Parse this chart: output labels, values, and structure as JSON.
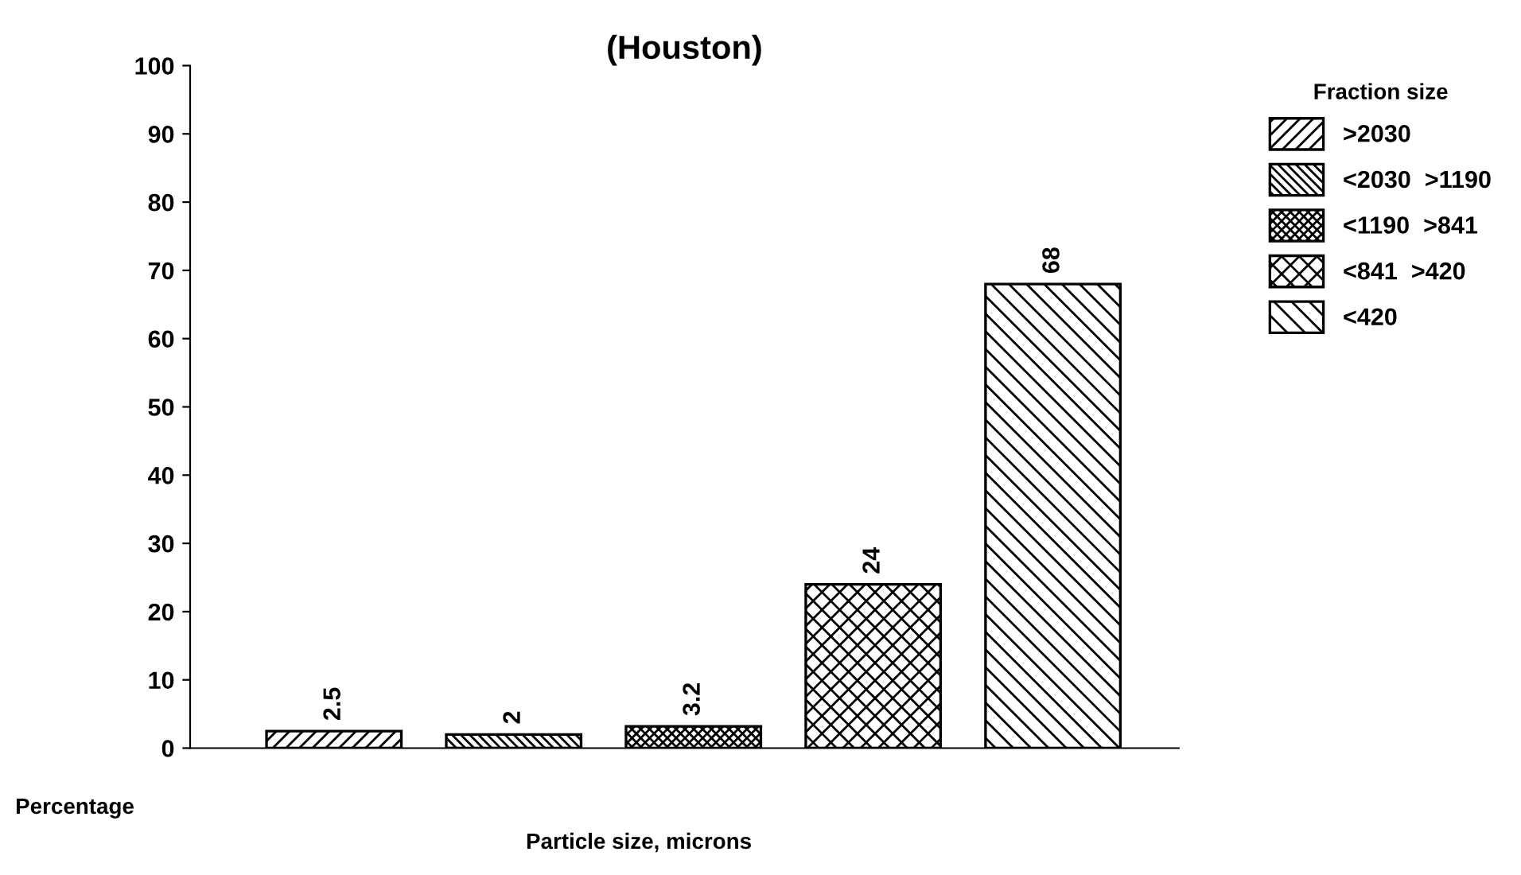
{
  "chart_data": {
    "type": "bar",
    "title": "(Houston)",
    "xlabel": "Particle size, microns",
    "ylabel": "Percentage",
    "legend_title": "Fraction size",
    "categories": [
      null,
      null,
      null,
      null,
      null
    ],
    "series": [
      {
        "name": ">2030",
        "color": "#000000",
        "values": [
          2.5,
          null,
          null,
          null,
          null
        ]
      },
      {
        "name": "<2030  >1190",
        "color": "#000000",
        "values": [
          null,
          2,
          null,
          null,
          null
        ]
      },
      {
        "name": "<1190  >841",
        "color": "#000000",
        "values": [
          null,
          null,
          3.2,
          null,
          null
        ]
      },
      {
        "name": "<841  >420",
        "color": "#000000",
        "values": [
          null,
          null,
          null,
          24,
          null
        ]
      },
      {
        "name": "<420",
        "color": "#000000",
        "values": [
          null,
          null,
          null,
          null,
          68
        ]
      }
    ],
    "ylim": [
      0,
      100
    ],
    "yticks": [
      0,
      10,
      20,
      30,
      40,
      50,
      60,
      70,
      80,
      90,
      100
    ],
    "data_labels": true,
    "grid": false,
    "legend": "top right"
  }
}
